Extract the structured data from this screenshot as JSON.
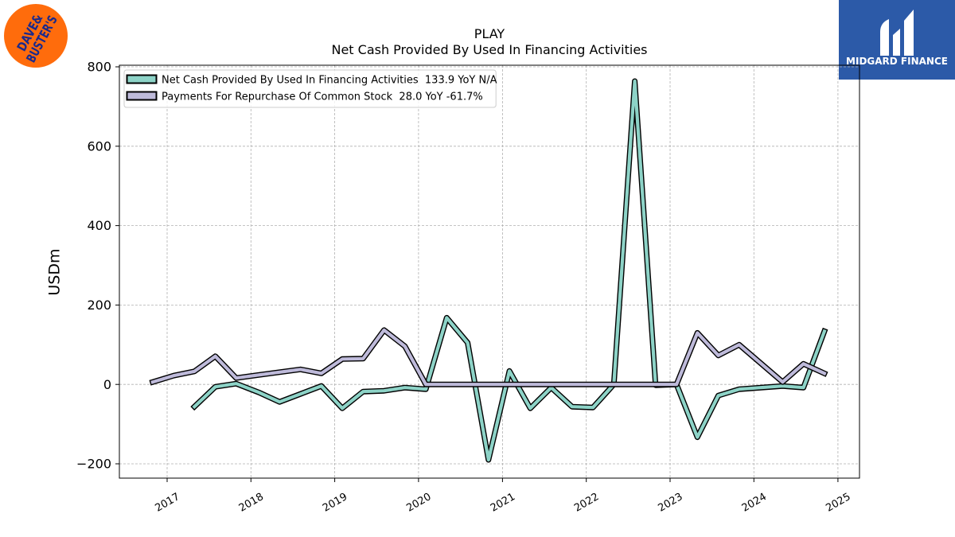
{
  "logos": {
    "left": {
      "line1": "DAVE&",
      "line2": "BUSTER'S",
      "color": "#ff6c0c",
      "text_color": "#1b2a8c"
    },
    "right": {
      "text": "MIDGARD FINANCE",
      "color": "#2c5aa8"
    }
  },
  "chart_data": {
    "type": "line",
    "title": "PLAY",
    "subtitle": "Net Cash Provided By Used In Financing Activities",
    "xlabel": "",
    "ylabel": "USDm",
    "xlim": [
      "2016-06-07",
      "2025-04-05"
    ],
    "ylim": [
      -236,
      804
    ],
    "xticks": [
      "2017-01-01",
      "2018-01-01",
      "2019-01-01",
      "2020-01-01",
      "2021-01-01",
      "2022-01-01",
      "2023-01-01",
      "2024-01-01",
      "2025-01-01"
    ],
    "xtick_labels": [
      "2017",
      "2018",
      "2019",
      "2020",
      "2021",
      "2022",
      "2023",
      "2024",
      "2025"
    ],
    "yticks": [
      -200,
      0,
      200,
      400,
      600,
      800
    ],
    "ytick_labels": [
      "−200",
      "0",
      "200",
      "400",
      "600",
      "800"
    ],
    "grid": true,
    "legend_position": "upper left",
    "x": [
      "2016-10-30",
      "2017-01-29",
      "2017-04-30",
      "2017-07-30",
      "2017-10-29",
      "2018-02-04",
      "2018-05-06",
      "2018-08-05",
      "2018-11-04",
      "2019-02-03",
      "2019-05-05",
      "2019-08-04",
      "2019-11-03",
      "2020-02-02",
      "2020-05-03",
      "2020-08-02",
      "2020-11-01",
      "2021-01-31",
      "2021-05-02",
      "2021-08-01",
      "2021-10-31",
      "2022-01-30",
      "2022-05-01",
      "2022-07-31",
      "2022-10-30",
      "2023-01-29",
      "2023-04-30",
      "2023-07-30",
      "2023-10-29",
      "2024-05-05",
      "2024-08-04",
      "2024-11-03"
    ],
    "series": [
      {
        "name": "Net Cash Provided By Used In Financing Activities",
        "legend_stats": "133.9 YoY N/A",
        "color": "#8dd3c7",
        "values": [
          null,
          null,
          -56,
          -6,
          2,
          -20,
          -44,
          -24,
          -4,
          -60,
          -18,
          -16,
          -8,
          -12,
          168,
          105,
          -190,
          34,
          -60,
          -8,
          -56,
          -58,
          0,
          764,
          -2,
          0,
          -133,
          -28,
          -12,
          -4,
          -8,
          133.9
        ]
      },
      {
        "name": "Payments For Repurchase Of Common Stock",
        "legend_stats": "28.0 YoY -61.7%",
        "color": "#bebada",
        "values": [
          6,
          22,
          33,
          71,
          16,
          24,
          31,
          38,
          28,
          64,
          65,
          137,
          96,
          0,
          0,
          0,
          0,
          0,
          0,
          0,
          0,
          0,
          0,
          0,
          0,
          0,
          130,
          73,
          100,
          6,
          52,
          28.0
        ]
      }
    ]
  }
}
